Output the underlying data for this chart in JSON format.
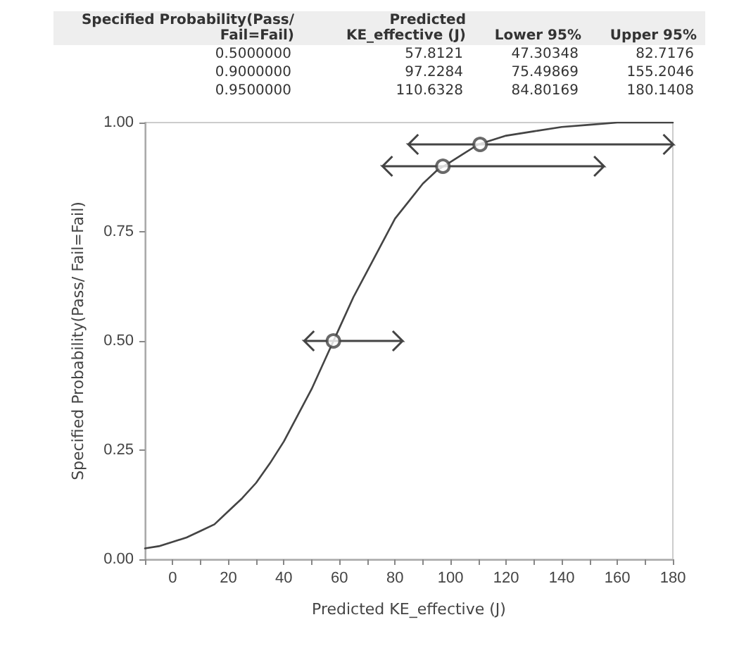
{
  "chart_data": {
    "type": "line",
    "xlabel": "Predicted KE_effective (J)",
    "ylabel": "Specified Probability(Pass/ Fail=Fail)",
    "xlim": [
      -10,
      180
    ],
    "ylim": [
      0,
      1
    ],
    "xticks": [
      {
        "value": -10,
        "label": null
      },
      0,
      {
        "value": 10,
        "label": null
      },
      20,
      {
        "value": 30,
        "label": null
      },
      40,
      {
        "value": 50,
        "label": null
      },
      60,
      {
        "value": 70,
        "label": null
      },
      80,
      {
        "value": 90,
        "label": null
      },
      100,
      {
        "value": 110,
        "label": null
      },
      120,
      {
        "value": 130,
        "label": null
      },
      140,
      {
        "value": 150,
        "label": null
      },
      160,
      {
        "value": 170,
        "label": null
      },
      180
    ],
    "yticks": [
      {
        "value": 0,
        "label": "0.00"
      },
      {
        "value": 0.25,
        "label": "0.25"
      },
      {
        "value": 0.5,
        "label": "0.50"
      },
      {
        "value": 0.75,
        "label": "0.75"
      },
      {
        "value": 1,
        "label": "1.00"
      }
    ],
    "grid": false,
    "series": [
      {
        "type": "line",
        "color": "#444444",
        "marker": "none",
        "x": [
          -10,
          -5,
          0,
          5,
          10,
          15,
          20,
          25,
          30,
          35,
          40,
          45,
          50,
          55,
          60,
          65,
          70,
          75,
          80,
          85,
          90,
          95,
          100,
          105,
          110,
          115,
          120,
          130,
          140,
          150,
          160,
          170,
          180
        ],
        "values": [
          0.025,
          0.03,
          0.04,
          0.05,
          0.065,
          0.08,
          0.11,
          0.14,
          0.175,
          0.22,
          0.27,
          0.33,
          0.39,
          0.46,
          0.53,
          0.6,
          0.66,
          0.72,
          0.78,
          0.82,
          0.86,
          0.89,
          0.91,
          0.93,
          0.95,
          0.96,
          0.97,
          0.98,
          0.99,
          0.995,
          1.0,
          1.0,
          1.0
        ]
      },
      {
        "type": "scatter",
        "color": "#444444",
        "marker": "circle",
        "x": [
          57.8121,
          97.2284,
          110.6328
        ],
        "values": [
          0.5,
          0.9,
          0.95
        ],
        "xerrors": [
          [
            47.30348,
            82.7176
          ],
          [
            75.49869,
            155.2046
          ],
          [
            84.80169,
            180.1408
          ]
        ]
      }
    ],
    "annotations": [
      "Specified Probability(Pass/ Fail=Fail)",
      "Predicted KE_effective (J)",
      "Lower 95%",
      "Upper 95%",
      "0.5000000",
      "57.8121",
      "47.30348",
      "82.7176",
      "0.9000000",
      "97.2284",
      "75.49869",
      "155.2046",
      "0.9500000",
      "110.6328",
      "84.80169",
      "180.1408"
    ]
  }
}
